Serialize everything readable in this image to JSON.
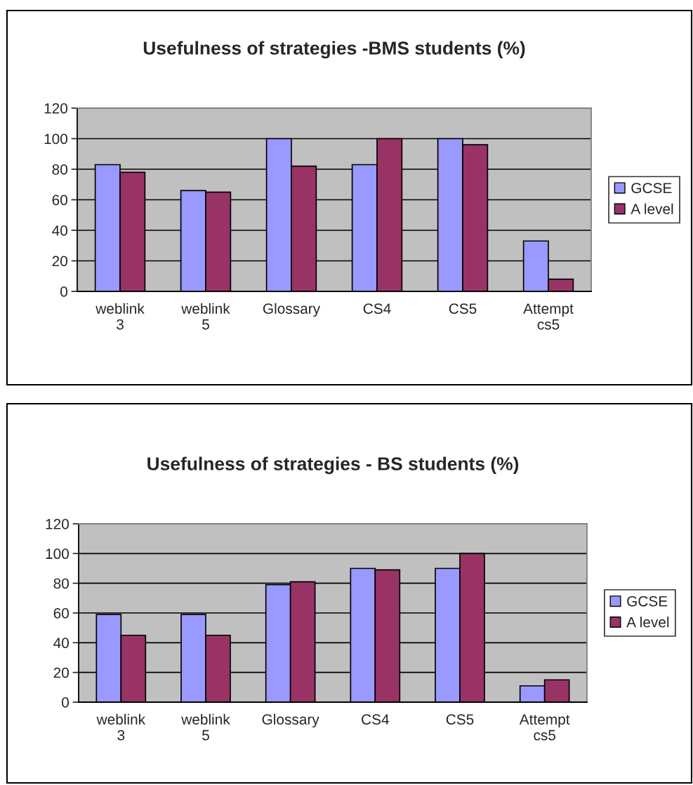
{
  "chart_data": [
    {
      "type": "bar",
      "title": "Usefulness of strategies -BMS students (%)",
      "categories": [
        "weblink\n3",
        "weblink\n5",
        "Glossary",
        "CS4",
        "CS5",
        "Attempt\ncs5"
      ],
      "series": [
        {
          "name": "GCSE",
          "color": "#9999ff",
          "values": [
            83,
            66,
            100,
            83,
            100,
            33
          ]
        },
        {
          "name": "A level",
          "color": "#993366",
          "values": [
            78,
            65,
            82,
            100,
            96,
            8
          ]
        }
      ],
      "ylim": [
        0,
        120
      ],
      "yticks": [
        0,
        20,
        40,
        60,
        80,
        100,
        120
      ],
      "grid": "y",
      "legend": "right"
    },
    {
      "type": "bar",
      "title": "Usefulness of strategies - BS students (%)",
      "categories": [
        "weblink\n3",
        "weblink\n5",
        "Glossary",
        "CS4",
        "CS5",
        "Attempt\ncs5"
      ],
      "series": [
        {
          "name": "GCSE",
          "color": "#9999ff",
          "values": [
            59,
            59,
            79,
            90,
            90,
            11
          ]
        },
        {
          "name": "A level",
          "color": "#993366",
          "values": [
            45,
            45,
            81,
            89,
            100,
            15
          ]
        }
      ],
      "ylim": [
        0,
        120
      ],
      "yticks": [
        0,
        20,
        40,
        60,
        80,
        100,
        120
      ],
      "grid": "y",
      "legend": "right"
    }
  ]
}
